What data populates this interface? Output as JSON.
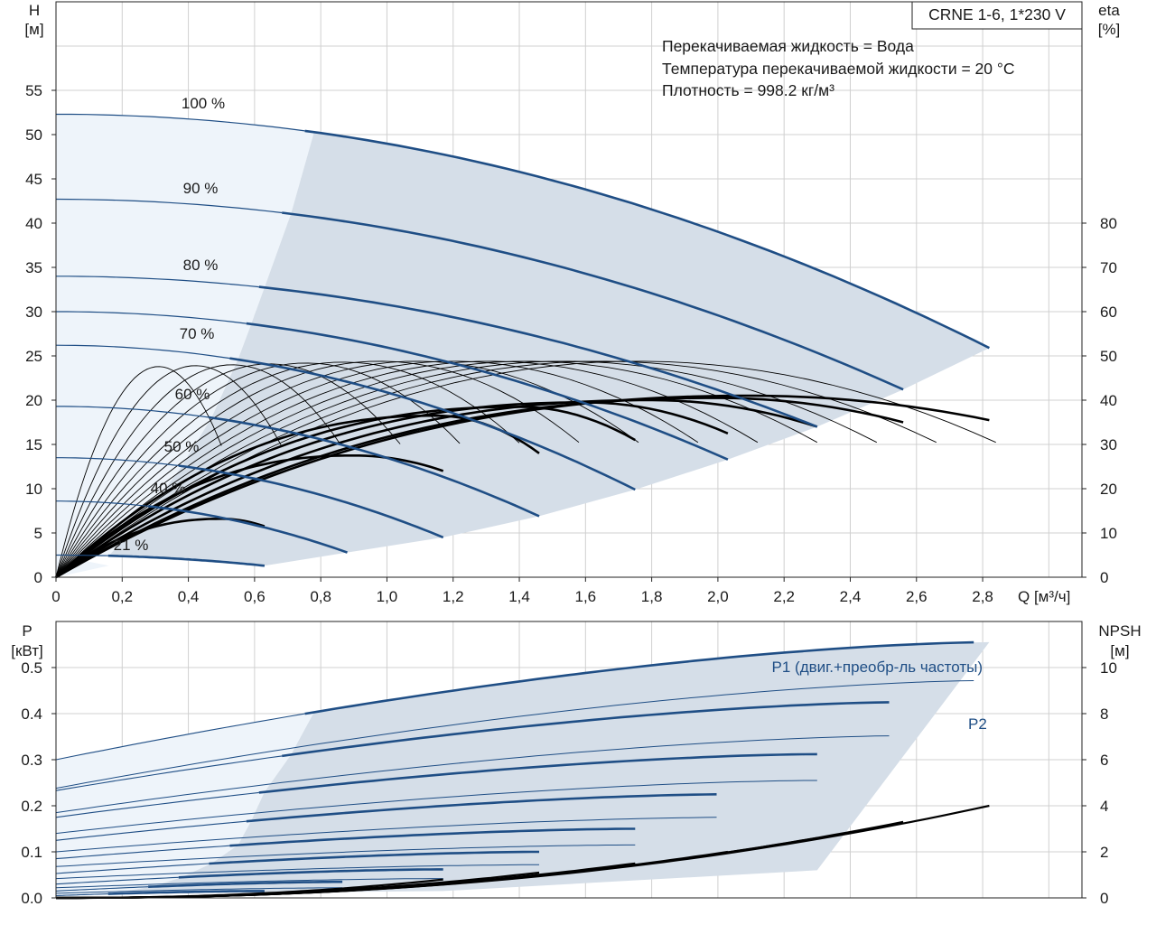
{
  "pump_label": "CRNE 1-6, 1*230 V",
  "info_lines": [
    "Перекачиваемая жидкость = Вода",
    "Температура перекачиваемой жидкости = 20 °C",
    "Плотность = 998.2 кг/м³"
  ],
  "colors": {
    "curve_blue": "#1f4e85",
    "region_dark": "#d5dee8",
    "region_light": "#eef4fa",
    "black": "#000000",
    "grid": "#d0d0d0"
  },
  "chart_data": [
    {
      "type": "line",
      "title": "",
      "axes": {
        "x": {
          "title": "Q [м³/ч]",
          "range": [
            0,
            3.1
          ],
          "ticks": [
            "0",
            "0,2",
            "0,4",
            "0,6",
            "0,8",
            "1,0",
            "1,2",
            "1,4",
            "1,6",
            "1,8",
            "2,0",
            "2,2",
            "2,4",
            "2,6",
            "2,8"
          ]
        },
        "y_left": {
          "title_lines": [
            "H",
            "[м]"
          ],
          "range": [
            0,
            65
          ],
          "ticks": [
            "0",
            "5",
            "10",
            "15",
            "20",
            "25",
            "30",
            "35",
            "40",
            "45",
            "50",
            "55"
          ]
        },
        "y_right": {
          "title_lines": [
            "eta",
            "[%]"
          ],
          "range": [
            0,
            130
          ],
          "ticks": [
            "0",
            "10",
            "20",
            "30",
            "40",
            "50",
            "60",
            "70",
            "80"
          ]
        }
      },
      "grid": true,
      "speed_curves": [
        {
          "label": "100 %",
          "qmax": 2.82,
          "h0": 52.3,
          "h_end": 25.9,
          "q_op": 0.78
        },
        {
          "label": "90 %",
          "qmax": 2.56,
          "h0": 42.7,
          "h_end": 21.2,
          "q_op": 0.71
        },
        {
          "label": "80 %",
          "qmax": 2.3,
          "h0": 34.0,
          "h_end": 17.0,
          "q_op": 0.63
        },
        {
          "label": "",
          "qmax": 2.03,
          "h0": 30.0,
          "h_end": 13.3,
          "q_op": 0.59
        },
        {
          "label": "70 %",
          "qmax": 1.75,
          "h0": 26.2,
          "h_end": 9.9,
          "q_op": 0.55
        },
        {
          "label": "60 %",
          "qmax": 1.46,
          "h0": 19.3,
          "h_end": 6.9,
          "q_op": 0.47
        },
        {
          "label": "50 %",
          "qmax": 1.17,
          "h0": 13.5,
          "h_end": 4.5,
          "q_op": 0.38
        },
        {
          "label": "40 %",
          "qmax": 0.88,
          "h0": 8.6,
          "h_end": 2.8,
          "q_op": 0.29
        },
        {
          "label": "21 %",
          "qmax": 0.63,
          "h0": 2.5,
          "h_end": 1.3,
          "q_op": 0.16
        }
      ],
      "efficiency_curves_pct": [
        {
          "qmax": 2.82,
          "peak_q": 2.1,
          "peak_eta": 41,
          "end_eta": 35.5
        },
        {
          "qmax": 2.56,
          "peak_q": 2.0,
          "peak_eta": 40.5,
          "end_eta": 35
        },
        {
          "qmax": 2.3,
          "peak_q": 1.8,
          "peak_eta": 40,
          "end_eta": 34
        },
        {
          "qmax": 2.03,
          "peak_q": 1.6,
          "peak_eta": 39.5,
          "end_eta": 32.5
        },
        {
          "qmax": 1.75,
          "peak_q": 1.4,
          "peak_eta": 38.5,
          "end_eta": 31
        },
        {
          "qmax": 1.46,
          "peak_q": 1.15,
          "peak_eta": 36.5,
          "end_eta": 28
        },
        {
          "qmax": 1.17,
          "peak_q": 0.9,
          "peak_eta": 27.5,
          "end_eta": 24
        },
        {
          "qmax": 0.63,
          "peak_q": 0.5,
          "peak_eta": 13.2,
          "end_eta": 11.5
        }
      ]
    },
    {
      "type": "line",
      "title": "",
      "axes": {
        "x": {
          "range": [
            0,
            3.1
          ]
        },
        "y_left": {
          "title_lines": [
            "P",
            "[кВт]"
          ],
          "range": [
            0,
            0.6
          ],
          "ticks": [
            "0.0",
            "0.1",
            "0.2",
            "0.3",
            "0.4",
            "0.5"
          ]
        },
        "y_right": {
          "title_lines": [
            "NPSH",
            "[м]"
          ],
          "range": [
            0,
            12
          ],
          "ticks": [
            "0",
            "2",
            "4",
            "6",
            "8",
            "10"
          ]
        }
      },
      "grid": true,
      "series_labels": [
        "P1 (двиг.+преобр-ль частоты)",
        "P2"
      ],
      "p1_curves_kw": [
        {
          "qmax": 2.82,
          "p0": 0.3,
          "p_end": 0.555,
          "q_op": 0.78
        },
        {
          "qmax": 2.56,
          "p0": 0.233,
          "p_end": 0.425,
          "q_op": 0.71
        },
        {
          "qmax": 2.3,
          "p0": 0.175,
          "p_end": 0.312,
          "q_op": 0.63
        },
        {
          "qmax": 2.03,
          "p0": 0.125,
          "p_end": 0.225,
          "q_op": 0.59
        },
        {
          "qmax": 1.75,
          "p0": 0.085,
          "p_end": 0.15,
          "q_op": 0.55
        },
        {
          "qmax": 1.46,
          "p0": 0.053,
          "p_end": 0.1,
          "q_op": 0.47
        },
        {
          "qmax": 1.17,
          "p0": 0.03,
          "p_end": 0.062,
          "q_op": 0.38
        },
        {
          "qmax": 0.88,
          "p0": 0.015,
          "p_end": 0.035,
          "q_op": 0.29
        },
        {
          "qmax": 0.63,
          "p0": 0.005,
          "p_end": 0.015,
          "q_op": 0.16
        }
      ],
      "p2_curves_kw": [
        {
          "qmax": 2.82,
          "p0": 0.238,
          "p_end": 0.472
        },
        {
          "qmax": 2.56,
          "p0": 0.185,
          "p_end": 0.352
        },
        {
          "qmax": 2.3,
          "p0": 0.14,
          "p_end": 0.255
        },
        {
          "qmax": 2.03,
          "p0": 0.1,
          "p_end": 0.175
        },
        {
          "qmax": 1.75,
          "p0": 0.068,
          "p_end": 0.115
        },
        {
          "qmax": 1.46,
          "p0": 0.042,
          "p_end": 0.072
        },
        {
          "qmax": 1.17,
          "p0": 0.022,
          "p_end": 0.042
        },
        {
          "qmax": 0.88,
          "p0": 0.01,
          "p_end": 0.022
        }
      ],
      "npsh_curves_m": [
        {
          "qmax": 2.82,
          "n_end": 4.0
        },
        {
          "qmax": 2.56,
          "n_end": 3.3
        },
        {
          "qmax": 2.3,
          "n_end": 2.6
        },
        {
          "qmax": 2.03,
          "n_end": 2.0
        },
        {
          "qmax": 1.75,
          "n_end": 1.5
        },
        {
          "qmax": 1.46,
          "n_end": 1.1
        },
        {
          "qmax": 1.17,
          "n_end": 0.8
        }
      ]
    }
  ]
}
